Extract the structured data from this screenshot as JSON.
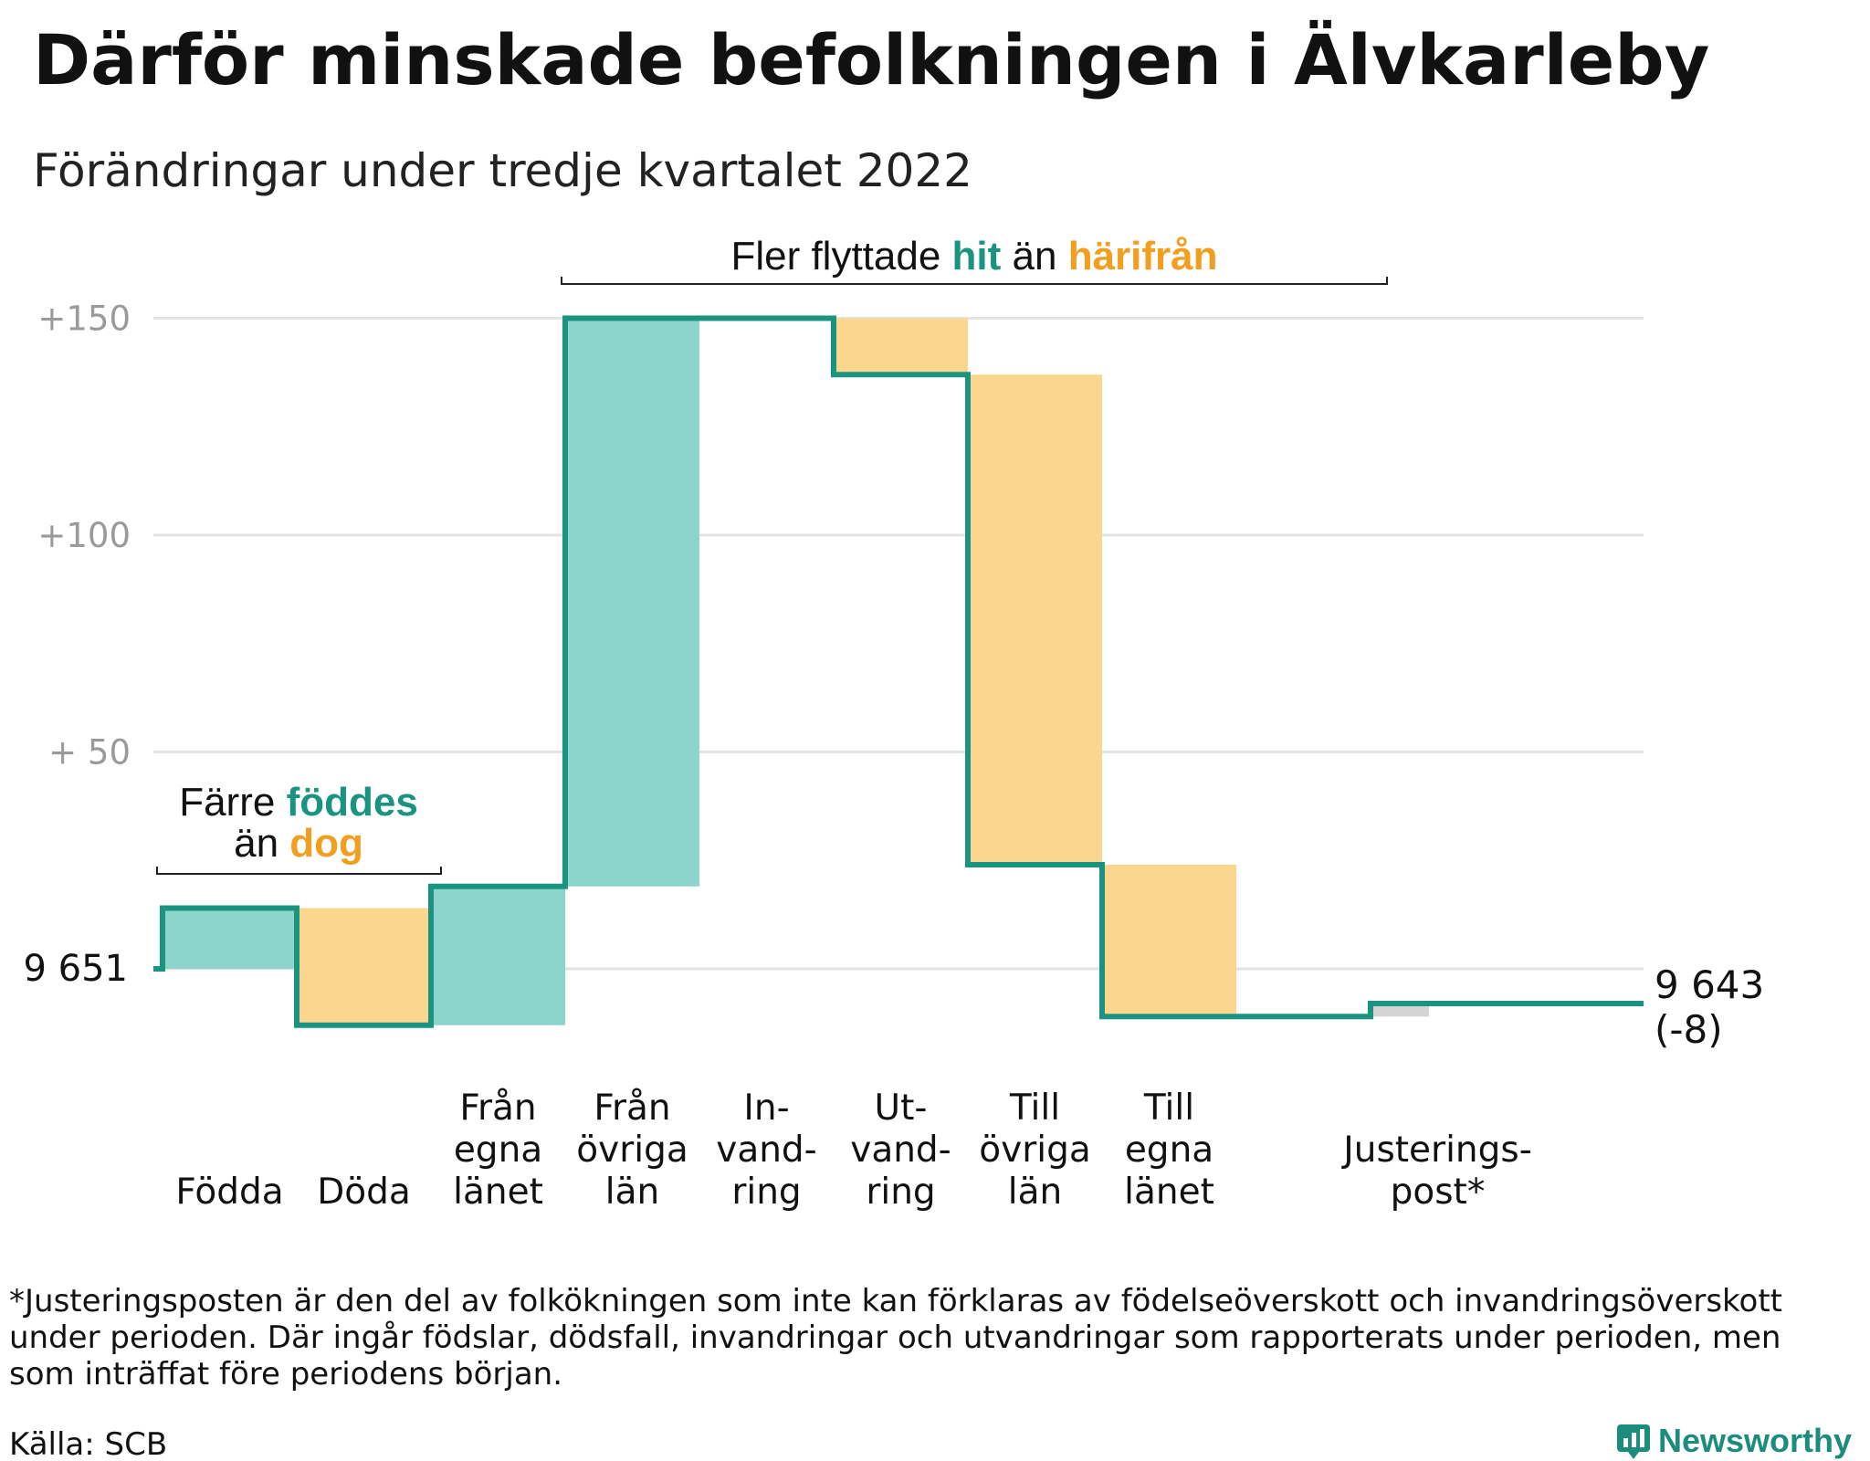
{
  "title": "Därför minskade befolkningen i Älvkarleby",
  "subtitle": "Förändringar under tredje kvartalet 2022",
  "colors": {
    "increase": "#8dd4cc",
    "decrease": "#fad68e",
    "adjustment": "#d4d4d4",
    "line": "#1a9480",
    "teal_text": "#1a9480",
    "orange_text": "#f29e1f",
    "grid": "#e3e3e3",
    "tick": "#9a9a9a"
  },
  "chart_data": {
    "type": "waterfall",
    "start_value": 9651,
    "end_value": 9643,
    "y_ticks": [
      {
        "value": 150,
        "label": "+150"
      },
      {
        "value": 100,
        "label": "+100"
      },
      {
        "value": 50,
        "label": "+ 50"
      },
      {
        "value": 0,
        "label": "9 651"
      }
    ],
    "steps": [
      {
        "category": [
          "Födda"
        ],
        "change": 14,
        "kind": "increase"
      },
      {
        "category": [
          "Döda"
        ],
        "change": -27,
        "kind": "decrease"
      },
      {
        "category": [
          "Från",
          "egna",
          "länet"
        ],
        "change": 32,
        "kind": "increase"
      },
      {
        "category": [
          "Från",
          "övriga",
          "län"
        ],
        "change": 131,
        "kind": "increase"
      },
      {
        "category": [
          "In-",
          "vand-",
          "ring"
        ],
        "change": 0,
        "kind": "increase"
      },
      {
        "category": [
          "Ut-",
          "vand-",
          "ring"
        ],
        "change": -13,
        "kind": "decrease"
      },
      {
        "category": [
          "Till",
          "övriga",
          "län"
        ],
        "change": -113,
        "kind": "decrease"
      },
      {
        "category": [
          "Till",
          "egna",
          "länet"
        ],
        "change": -35,
        "kind": "decrease"
      },
      {
        "category": [
          ""
        ],
        "change": 0,
        "kind": "none"
      },
      {
        "category": [
          "Justerings-",
          "post*"
        ],
        "change": 3,
        "kind": "adjustment"
      }
    ],
    "end_labels": [
      "9 643",
      "(-8)"
    ]
  },
  "annotations": {
    "migration": {
      "prefix": "Fler flyttade ",
      "hit": "hit",
      "mid": " än ",
      "harifran": "härifrån"
    },
    "births": {
      "line1_prefix": "Färre ",
      "foddes": "föddes",
      "line2_prefix": "än ",
      "dog": "dog"
    }
  },
  "footnote": [
    "*Justeringsposten är den del av folkökningen som inte kan förklaras av födelseöverskott och invandringsöverskott",
    "under perioden. Där ingår födslar, dödsfall, invandringar och utvandringar som rapporterats under perioden, men",
    "som inträffat före periodens början."
  ],
  "source": "Källa: SCB",
  "brand": "Newsworthy"
}
